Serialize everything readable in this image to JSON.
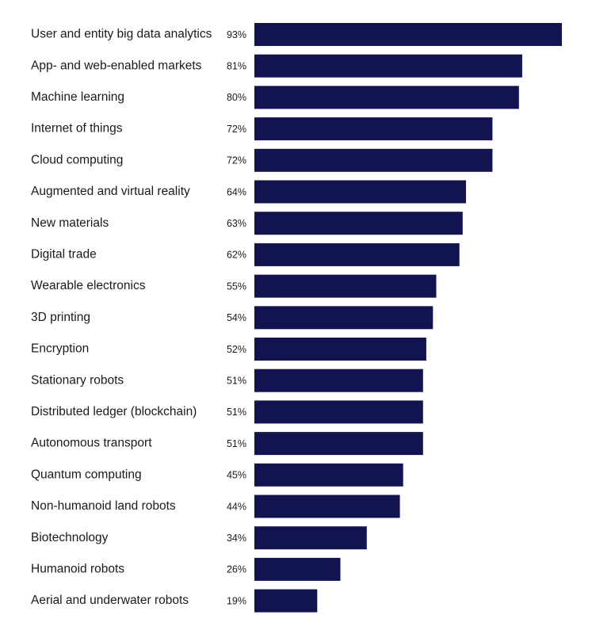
{
  "chart_data": {
    "type": "bar",
    "orientation": "horizontal",
    "title": "",
    "xlabel": "",
    "ylabel": "",
    "categories": [
      "User and entity big data analytics",
      "App- and web-enabled markets",
      "Machine learning",
      "Internet of things",
      "Cloud computing",
      "Augmented and virtual reality",
      "New materials",
      "Digital trade",
      "Wearable electronics",
      "3D printing",
      "Encryption",
      "Stationary robots",
      "Distributed ledger (blockchain)",
      "Autonomous transport",
      "Quantum computing",
      "Non-humanoid land robots",
      "Biotechnology",
      "Humanoid robots",
      "Aerial and underwater robots"
    ],
    "values": [
      93,
      81,
      80,
      72,
      72,
      64,
      63,
      62,
      55,
      54,
      52,
      51,
      51,
      51,
      45,
      44,
      34,
      26,
      19
    ],
    "value_labels": [
      "93%",
      "81%",
      "80%",
      "72%",
      "72%",
      "64%",
      "63%",
      "62%",
      "55%",
      "54%",
      "52%",
      "51%",
      "51%",
      "51%",
      "45%",
      "44%",
      "34%",
      "26%",
      "19%"
    ],
    "unit": "%",
    "xlim": [
      0,
      93
    ],
    "grid": false,
    "legend": "none",
    "bar_color": "#111450"
  }
}
